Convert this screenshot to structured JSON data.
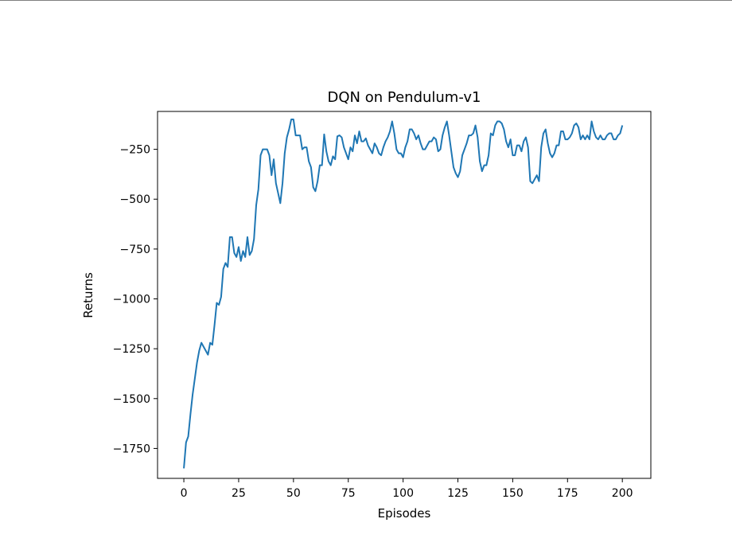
{
  "chart_data": {
    "type": "line",
    "title": "DQN on Pendulum-v1",
    "xlabel": "Episodes",
    "ylabel": "Returns",
    "xlim": [
      -12,
      213
    ],
    "ylim": [
      -1900,
      -60
    ],
    "xticks": [
      0,
      25,
      50,
      75,
      100,
      125,
      150,
      175,
      200
    ],
    "yticks": [
      -250,
      -500,
      -750,
      -1000,
      -1250,
      -1500,
      -1750
    ],
    "xtick_labels": [
      "0",
      "25",
      "50",
      "75",
      "100",
      "125",
      "150",
      "175",
      "200"
    ],
    "ytick_labels": [
      "−250",
      "−500",
      "−750",
      "−1000",
      "−1250",
      "−1500",
      "−1750"
    ],
    "grid": false,
    "legend": "none",
    "series": [
      {
        "color": "#1f77b4",
        "values": [
          -1850,
          -1720,
          -1690,
          -1580,
          -1480,
          -1400,
          -1320,
          -1260,
          -1220,
          -1240,
          -1260,
          -1280,
          -1220,
          -1230,
          -1130,
          -1020,
          -1030,
          -990,
          -850,
          -820,
          -840,
          -690,
          -690,
          -770,
          -790,
          -740,
          -810,
          -760,
          -790,
          -690,
          -780,
          -760,
          -700,
          -530,
          -450,
          -280,
          -250,
          -250,
          -250,
          -280,
          -380,
          -300,
          -420,
          -470,
          -520,
          -420,
          -270,
          -190,
          -150,
          -100,
          -100,
          -180,
          -180,
          -180,
          -250,
          -240,
          -240,
          -310,
          -340,
          -440,
          -460,
          -410,
          -330,
          -330,
          -175,
          -260,
          -310,
          -330,
          -285,
          -300,
          -185,
          -180,
          -190,
          -240,
          -270,
          -300,
          -240,
          -260,
          -180,
          -220,
          -160,
          -210,
          -210,
          -195,
          -230,
          -250,
          -270,
          -220,
          -240,
          -270,
          -280,
          -240,
          -210,
          -190,
          -160,
          -110,
          -170,
          -250,
          -270,
          -270,
          -290,
          -240,
          -210,
          -150,
          -150,
          -170,
          -200,
          -180,
          -220,
          -250,
          -250,
          -230,
          -210,
          -210,
          -190,
          -200,
          -260,
          -250,
          -180,
          -140,
          -110,
          -180,
          -260,
          -340,
          -370,
          -390,
          -360,
          -280,
          -250,
          -220,
          -180,
          -180,
          -170,
          -130,
          -190,
          -310,
          -360,
          -330,
          -330,
          -280,
          -170,
          -180,
          -130,
          -110,
          -110,
          -120,
          -150,
          -210,
          -240,
          -200,
          -280,
          -280,
          -230,
          -230,
          -260,
          -210,
          -190,
          -240,
          -410,
          -420,
          -400,
          -380,
          -410,
          -240,
          -170,
          -150,
          -220,
          -270,
          -290,
          -270,
          -230,
          -230,
          -160,
          -160,
          -200,
          -200,
          -190,
          -170,
          -130,
          -120,
          -140,
          -200,
          -180,
          -200,
          -180,
          -200,
          -110,
          -160,
          -190,
          -200,
          -180,
          -200,
          -200,
          -180,
          -170,
          -170,
          -200,
          -200,
          -180,
          -170,
          -130
        ]
      }
    ]
  }
}
